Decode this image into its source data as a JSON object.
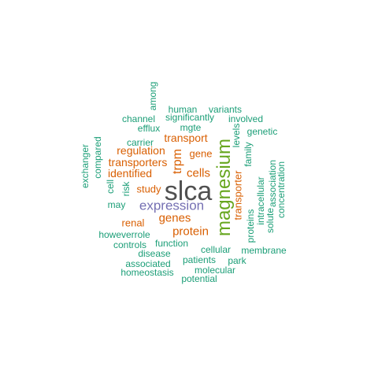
{
  "palette": {
    "teal": "#1b9e77",
    "orange": "#d95f02",
    "purple": "#7570b3",
    "green": "#66a61e",
    "gray": "#505050"
  },
  "words": [
    {
      "text": "slca",
      "color": "gray"
    },
    {
      "text": "magnesium",
      "color": "green",
      "orient": "v"
    },
    {
      "text": "expression",
      "color": "purple"
    },
    {
      "text": "genes",
      "color": "orange"
    },
    {
      "text": "protein",
      "color": "orange"
    },
    {
      "text": "cells",
      "color": "orange"
    },
    {
      "text": "trpm",
      "color": "orange",
      "orient": "v"
    },
    {
      "text": "transport",
      "color": "orange"
    },
    {
      "text": "regulation",
      "color": "orange"
    },
    {
      "text": "transporters",
      "color": "orange"
    },
    {
      "text": "identified",
      "color": "orange"
    },
    {
      "text": "gene",
      "color": "orange"
    },
    {
      "text": "transporter",
      "color": "orange",
      "orient": "v"
    },
    {
      "text": "renal",
      "color": "orange"
    },
    {
      "text": "study",
      "color": "orange"
    },
    {
      "text": "human",
      "color": "teal"
    },
    {
      "text": "variants",
      "color": "teal"
    },
    {
      "text": "among",
      "color": "teal",
      "orient": "v"
    },
    {
      "text": "channel",
      "color": "teal"
    },
    {
      "text": "significantly",
      "color": "teal"
    },
    {
      "text": "involved",
      "color": "teal"
    },
    {
      "text": "efflux",
      "color": "teal"
    },
    {
      "text": "mgte",
      "color": "teal"
    },
    {
      "text": "genetic",
      "color": "teal"
    },
    {
      "text": "carrier",
      "color": "teal"
    },
    {
      "text": "levels",
      "color": "teal",
      "orient": "v"
    },
    {
      "text": "family",
      "color": "teal",
      "orient": "v"
    },
    {
      "text": "exchanger",
      "color": "teal",
      "orient": "v"
    },
    {
      "text": "compared",
      "color": "teal",
      "orient": "v"
    },
    {
      "text": "cell",
      "color": "teal",
      "orient": "v"
    },
    {
      "text": "risk",
      "color": "teal",
      "orient": "v"
    },
    {
      "text": "may",
      "color": "teal"
    },
    {
      "text": "association",
      "color": "teal",
      "orient": "v"
    },
    {
      "text": "concentration",
      "color": "teal",
      "orient": "v"
    },
    {
      "text": "intracellular",
      "color": "teal",
      "orient": "v"
    },
    {
      "text": "solute",
      "color": "teal",
      "orient": "v"
    },
    {
      "text": "proteins",
      "color": "teal",
      "orient": "v"
    },
    {
      "text": "howeverrole",
      "color": "teal"
    },
    {
      "text": "controls",
      "color": "teal"
    },
    {
      "text": "function",
      "color": "teal"
    },
    {
      "text": "disease",
      "color": "teal"
    },
    {
      "text": "cellular",
      "color": "teal"
    },
    {
      "text": "membrane",
      "color": "teal"
    },
    {
      "text": "associated",
      "color": "teal"
    },
    {
      "text": "patients",
      "color": "teal"
    },
    {
      "text": "park",
      "color": "teal"
    },
    {
      "text": "homeostasis",
      "color": "teal"
    },
    {
      "text": "molecular",
      "color": "teal"
    },
    {
      "text": "potential",
      "color": "teal"
    }
  ]
}
